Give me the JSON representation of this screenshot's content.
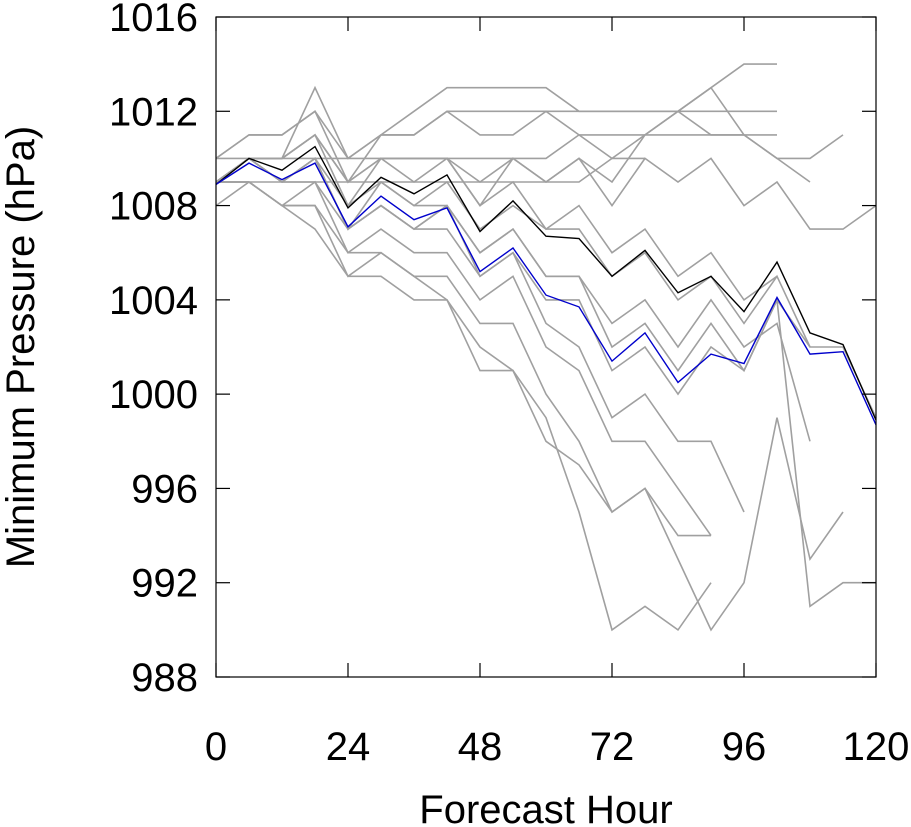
{
  "chart_data": {
    "type": "line",
    "title": "",
    "xlabel": "Forecast Hour",
    "ylabel": "Minimum Pressure (hPa)",
    "xlim": [
      0,
      120
    ],
    "ylim": [
      988,
      1016
    ],
    "x_ticks": [
      0,
      24,
      48,
      72,
      96,
      120
    ],
    "x_tick_labels": [
      "0",
      "24",
      "48",
      "72",
      "96",
      "120"
    ],
    "y_ticks": [
      988,
      992,
      996,
      1000,
      1004,
      1008,
      1012,
      1016
    ],
    "y_tick_labels": [
      "988",
      "992",
      "996",
      "1000",
      "1004",
      "1008",
      "1012",
      "1016"
    ],
    "grid": false,
    "legend": "none",
    "series": [
      {
        "color": "#000000",
        "x": [
          0,
          6,
          12,
          18,
          24,
          30,
          36,
          42,
          48,
          54,
          60,
          66,
          72,
          78,
          84,
          90,
          96,
          102,
          108,
          114,
          120
        ],
        "y": [
          1008.9,
          1010.0,
          1009.5,
          1010.5,
          1007.9,
          1009.2,
          1008.5,
          1009.3,
          1006.9,
          1008.2,
          1006.7,
          1006.6,
          1005.0,
          1006.1,
          1004.3,
          1005.0,
          1003.5,
          1005.6,
          1002.6,
          1002.1,
          998.9
        ]
      },
      {
        "color": "#0000cc",
        "x": [
          0,
          6,
          12,
          18,
          24,
          30,
          36,
          42,
          48,
          54,
          60,
          66,
          72,
          78,
          84,
          90,
          96,
          102,
          108,
          114,
          120
        ],
        "y": [
          1008.9,
          1009.8,
          1009.1,
          1009.8,
          1007.1,
          1008.4,
          1007.4,
          1007.9,
          1005.2,
          1006.2,
          1004.2,
          1003.7,
          1001.4,
          1002.6,
          1000.5,
          1001.7,
          1001.3,
          1004.1,
          1001.7,
          1001.8,
          998.7
        ]
      },
      {
        "color": "#a0a0a0",
        "x": [
          0,
          6,
          12,
          18,
          24,
          30,
          36,
          42,
          48,
          54,
          60,
          66,
          72,
          78,
          84,
          90,
          96,
          102,
          108,
          114,
          120
        ],
        "y": [
          1009,
          1010,
          1010,
          1011,
          1009,
          1010,
          1010,
          1010,
          1008,
          1010,
          1009,
          1010,
          1008,
          1010,
          1009,
          1010,
          1008,
          1009,
          1007,
          1007,
          1008
        ]
      },
      {
        "color": "#a0a0a0",
        "x": [
          0,
          6,
          12,
          18,
          24,
          30,
          36,
          42,
          48,
          54,
          60,
          66,
          72,
          78,
          84,
          90,
          96,
          102
        ],
        "y": [
          1009,
          1010,
          1010,
          1013,
          1010,
          1011,
          1012,
          1013,
          1013,
          1013,
          1013,
          1012,
          1012,
          1012,
          1012,
          1013,
          1014,
          1014
        ]
      },
      {
        "color": "#a0a0a0",
        "x": [
          0,
          6,
          12,
          18,
          24,
          30,
          36,
          42,
          48,
          54,
          60,
          66,
          72,
          78,
          84,
          90,
          96,
          102,
          108,
          114
        ],
        "y": [
          1010,
          1011,
          1011,
          1012,
          1010,
          1011,
          1011,
          1012,
          1011,
          1011,
          1012,
          1011,
          1010,
          1011,
          1012,
          1011,
          1011,
          1010,
          1010,
          1011
        ]
      },
      {
        "color": "#a0a0a0",
        "x": [
          0,
          6,
          12,
          18,
          24,
          30,
          36,
          42,
          48,
          54,
          60,
          66,
          72,
          78,
          84,
          90,
          96,
          102
        ],
        "y": [
          1010,
          1011,
          1011,
          1012,
          1009,
          1011,
          1011,
          1012,
          1012,
          1012,
          1012,
          1012,
          1012,
          1012,
          1012,
          1012,
          1012,
          1012
        ]
      },
      {
        "color": "#a0a0a0",
        "x": [
          0,
          6,
          12,
          18,
          24,
          30,
          36,
          42,
          48,
          54,
          60,
          66,
          72,
          78,
          84,
          90,
          96,
          102,
          108
        ],
        "y": [
          1010,
          1010,
          1010,
          1010,
          1010,
          1010,
          1010,
          1010,
          1010,
          1010,
          1010,
          1011,
          1011,
          1011,
          1012,
          1013,
          1011,
          1010,
          1009
        ]
      },
      {
        "color": "#a0a0a0",
        "x": [
          0,
          6,
          12,
          18,
          24,
          30,
          36,
          42,
          48,
          54,
          60,
          66,
          72,
          78,
          84,
          90,
          96,
          102
        ],
        "y": [
          1009,
          1010,
          1010,
          1011,
          1009,
          1010,
          1010,
          1010,
          1009,
          1010,
          1009,
          1010,
          1009,
          1011,
          1011,
          1011,
          1011,
          1011
        ]
      },
      {
        "color": "#a0a0a0",
        "x": [
          0,
          6,
          12,
          18,
          24,
          30,
          36,
          42,
          48,
          54,
          60,
          66,
          72,
          78
        ],
        "y": [
          1009,
          1009,
          1009,
          1009,
          1009,
          1009,
          1009,
          1009,
          1009,
          1009,
          1009,
          1009,
          1010,
          1010
        ]
      },
      {
        "color": "#a0a0a0",
        "x": [
          0,
          6,
          12,
          18,
          24,
          30,
          36,
          42,
          48,
          54,
          60,
          66,
          72,
          78,
          84,
          90,
          96,
          102,
          108,
          114,
          120
        ],
        "y": [
          1009,
          1010,
          1009,
          1010,
          1008,
          1009,
          1008,
          1009,
          1007,
          1008,
          1007,
          1007,
          1005,
          1006,
          1004,
          1005,
          1003,
          1005,
          1002,
          1002,
          999
        ]
      },
      {
        "color": "#a0a0a0",
        "x": [
          0,
          6,
          12,
          18,
          24,
          30,
          36,
          42,
          48,
          54,
          60,
          66,
          72,
          78,
          84,
          90,
          96,
          102
        ],
        "y": [
          1009,
          1010,
          1010,
          1011,
          1008,
          1010,
          1009,
          1010,
          1008,
          1009,
          1007,
          1008,
          1006,
          1007,
          1005,
          1006,
          1004,
          1005
        ]
      },
      {
        "color": "#a0a0a0",
        "x": [
          0,
          6,
          12,
          18,
          24,
          30,
          36,
          42,
          48,
          54,
          60,
          66,
          72,
          78,
          84,
          90,
          96,
          102,
          108
        ],
        "y": [
          1009,
          1010,
          1009,
          1010,
          1007,
          1008,
          1007,
          1008,
          1005,
          1006,
          1004,
          1004,
          1001,
          1002,
          1000,
          1002,
          1001,
          1004,
          1002
        ]
      },
      {
        "color": "#a0a0a0",
        "x": [
          0,
          6,
          12,
          18,
          24,
          30,
          36,
          42,
          48,
          54,
          60,
          66,
          72,
          78,
          84,
          90,
          96
        ],
        "y": [
          1009,
          1010,
          1009,
          1009,
          1007,
          1008,
          1007,
          1007,
          1005,
          1006,
          1003,
          1002,
          999,
          1000,
          998,
          998,
          995
        ]
      },
      {
        "color": "#a0a0a0",
        "x": [
          0,
          6,
          12,
          18,
          24,
          30,
          36,
          42,
          48,
          54,
          60,
          66,
          72,
          78,
          84,
          90
        ],
        "y": [
          1009,
          1009,
          1008,
          1009,
          1006,
          1007,
          1006,
          1006,
          1004,
          1005,
          1002,
          1001,
          998,
          998,
          996,
          994
        ]
      },
      {
        "color": "#a0a0a0",
        "x": [
          0,
          6,
          12,
          18,
          24,
          30,
          36,
          42,
          48,
          54,
          60,
          66,
          72,
          78,
          84,
          90
        ],
        "y": [
          1009,
          1009,
          1008,
          1008,
          1006,
          1006,
          1005,
          1005,
          1003,
          1003,
          1000,
          998,
          995,
          996,
          994,
          994
        ]
      },
      {
        "color": "#a0a0a0",
        "x": [
          0,
          6,
          12,
          18,
          24,
          30,
          36,
          42,
          48,
          54,
          60,
          66,
          72,
          78,
          84,
          90
        ],
        "y": [
          1008,
          1009,
          1008,
          1008,
          1005,
          1006,
          1005,
          1004,
          1002,
          1001,
          999,
          995,
          990,
          991,
          990,
          992
        ]
      },
      {
        "color": "#a0a0a0",
        "x": [
          0,
          6,
          12,
          18,
          24,
          30,
          36,
          42,
          48,
          54,
          60,
          66,
          72,
          78,
          84,
          90,
          96,
          102,
          108,
          114
        ],
        "y": [
          1009,
          1009,
          1008,
          1007,
          1005,
          1005,
          1004,
          1004,
          1001,
          1001,
          998,
          997,
          995,
          996,
          993,
          990,
          992,
          999,
          993,
          995
        ]
      },
      {
        "color": "#a0a0a0",
        "x": [
          0,
          6,
          12,
          18,
          24,
          30,
          36,
          42,
          48,
          54,
          60,
          66,
          72,
          78,
          84,
          90,
          96,
          102,
          108,
          114,
          120
        ],
        "y": [
          1009,
          1010,
          1009,
          1010,
          1007,
          1008,
          1007,
          1008,
          1006,
          1007,
          1005,
          1005,
          1002,
          1003,
          1001,
          1003,
          1001,
          1004,
          991,
          992,
          992
        ]
      },
      {
        "color": "#a0a0a0",
        "x": [
          0,
          6,
          12,
          18,
          24,
          30,
          36,
          42,
          48,
          54,
          60,
          66,
          72,
          78,
          84,
          90,
          96,
          102,
          108
        ],
        "y": [
          1009,
          1010,
          1009,
          1010,
          1007,
          1009,
          1008,
          1008,
          1006,
          1007,
          1005,
          1005,
          1003,
          1004,
          1002,
          1004,
          1002,
          1003,
          998
        ]
      }
    ]
  }
}
